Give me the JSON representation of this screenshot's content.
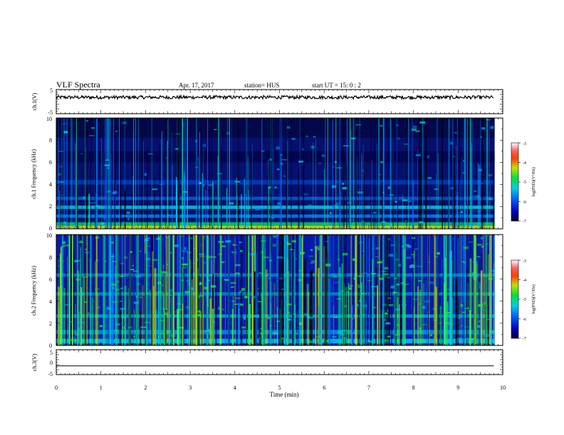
{
  "header": {
    "title": "VLF Spectra",
    "date": "Apr. 17, 2017",
    "station": "station= HUS",
    "start": "start  UT =   15: 0  : 2"
  },
  "chart_data": [
    {
      "type": "line",
      "panel": "ch1-waveform",
      "ylabel": "ch.1(V)",
      "yticks": [
        "5",
        "-5"
      ],
      "ylim": [
        -5,
        5
      ],
      "xlim": [
        0,
        10
      ],
      "trace_level": 1.8,
      "trace_amplitude": 0.7,
      "trace_end": 9.8,
      "color": "#000000"
    },
    {
      "type": "heatmap",
      "panel": "ch1-spectrogram",
      "ylabel": "ch.1  Frequency (kHz)",
      "yticks": [
        "0",
        "2",
        "4",
        "6",
        "8",
        "10"
      ],
      "ylim": [
        0,
        10
      ],
      "xlim": [
        0,
        10
      ],
      "colorbar": {
        "label": "log(PSD)(V²/Hz)",
        "ticks": [
          "-3",
          "-4",
          "-5",
          "-6",
          "-7"
        ],
        "range": [
          -7,
          -3
        ]
      }
    },
    {
      "type": "heatmap",
      "panel": "ch2-spectrogram",
      "ylabel": "ch.2  Frequency (kHz)",
      "yticks": [
        "0",
        "2",
        "4",
        "6",
        "8",
        "10"
      ],
      "ylim": [
        0,
        10
      ],
      "xlim": [
        0,
        10
      ],
      "colorbar": {
        "label": "log(PSD)(V²/Hz)",
        "ticks": [
          "-3",
          "-4",
          "-5",
          "-6",
          "-7"
        ],
        "range": [
          -7,
          -3
        ]
      }
    },
    {
      "type": "line",
      "panel": "ch3-waveform",
      "ylabel": "ch.3(V)",
      "yticks": [
        "5",
        "0",
        "-5"
      ],
      "ylim": [
        -5,
        5
      ],
      "xlim": [
        0,
        10
      ],
      "trace_level": -1.5,
      "trace_end": 9.8,
      "color": "#000000"
    }
  ],
  "xaxis": {
    "label": "Time  (min)",
    "ticks": [
      "0",
      "1",
      "2",
      "3",
      "4",
      "5",
      "6",
      "7",
      "8",
      "9",
      "10"
    ],
    "range": [
      0,
      10
    ]
  }
}
